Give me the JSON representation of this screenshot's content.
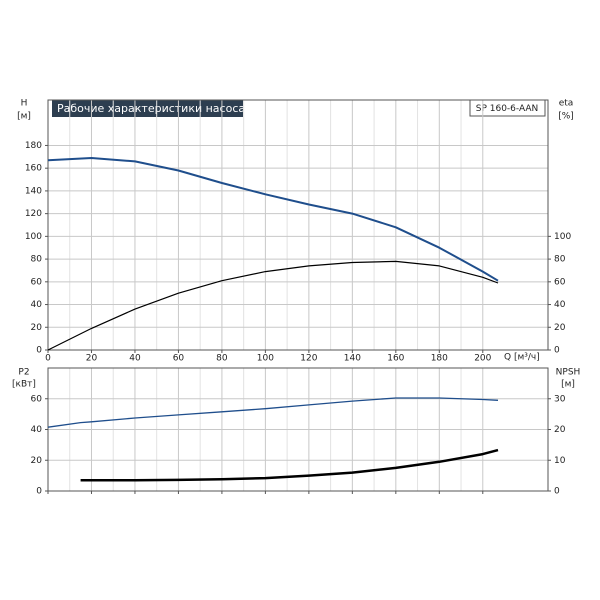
{
  "chart_data": [
    {
      "type": "line",
      "title": "Рабочие характеристики насоса",
      "annotation": "SP 160-6-AAN",
      "x_label": "Q [м³/ч]",
      "y_label": "H",
      "y_unit": "[м]",
      "y2_label": "eta",
      "y2_unit": "[%]",
      "x": [
        0,
        20,
        40,
        60,
        80,
        100,
        120,
        140,
        160,
        180,
        200,
        207
      ],
      "series": [
        {
          "name": "H",
          "color": "#1f4e8c",
          "values": [
            167,
            169,
            166,
            158,
            147,
            137,
            128,
            120,
            108,
            90,
            69,
            61
          ]
        },
        {
          "name": "eta",
          "color": "#000000",
          "axis": "y2",
          "values": [
            0,
            19,
            36,
            50,
            61,
            69,
            74,
            77,
            78,
            74,
            64,
            59
          ]
        }
      ],
      "xlim": [
        0,
        230
      ],
      "xticks": [
        0,
        20,
        40,
        60,
        80,
        100,
        120,
        140,
        160,
        180,
        200
      ],
      "ylim": [
        0,
        220
      ],
      "yticks": [
        0,
        20,
        40,
        60,
        80,
        100,
        120,
        140,
        160,
        180
      ],
      "y2lim": [
        0,
        220
      ],
      "y2ticks": [
        0,
        20,
        40,
        60,
        80,
        100
      ],
      "grid": true
    },
    {
      "type": "line",
      "y_label": "P2",
      "y_unit": "[кВт]",
      "y2_label": "NPSH",
      "y2_unit": "[м]",
      "x": [
        0,
        15,
        20,
        40,
        60,
        80,
        100,
        120,
        140,
        160,
        180,
        200,
        207
      ],
      "series": [
        {
          "name": "P2",
          "color": "#1f4e8c",
          "values": [
            41.5,
            44.5,
            45,
            47.5,
            49.5,
            51.5,
            53.5,
            56,
            58.5,
            60.5,
            60.5,
            59.5,
            59
          ]
        },
        {
          "name": "NPSH",
          "color": "#000000",
          "axis": "y2",
          "values": [
            null,
            3.5,
            3.5,
            3.5,
            3.6,
            3.8,
            4.2,
            5,
            6,
            7.5,
            9.5,
            12,
            13.3
          ]
        }
      ],
      "xlim": [
        0,
        230
      ],
      "xticks": [
        0,
        20,
        40,
        60,
        80,
        100,
        120,
        140,
        160,
        180,
        200
      ],
      "ylim": [
        0,
        80
      ],
      "yticks": [
        0,
        20,
        40,
        60
      ],
      "y2lim": [
        0,
        40
      ],
      "y2ticks": [
        0,
        10,
        20,
        30
      ],
      "grid": true
    }
  ]
}
